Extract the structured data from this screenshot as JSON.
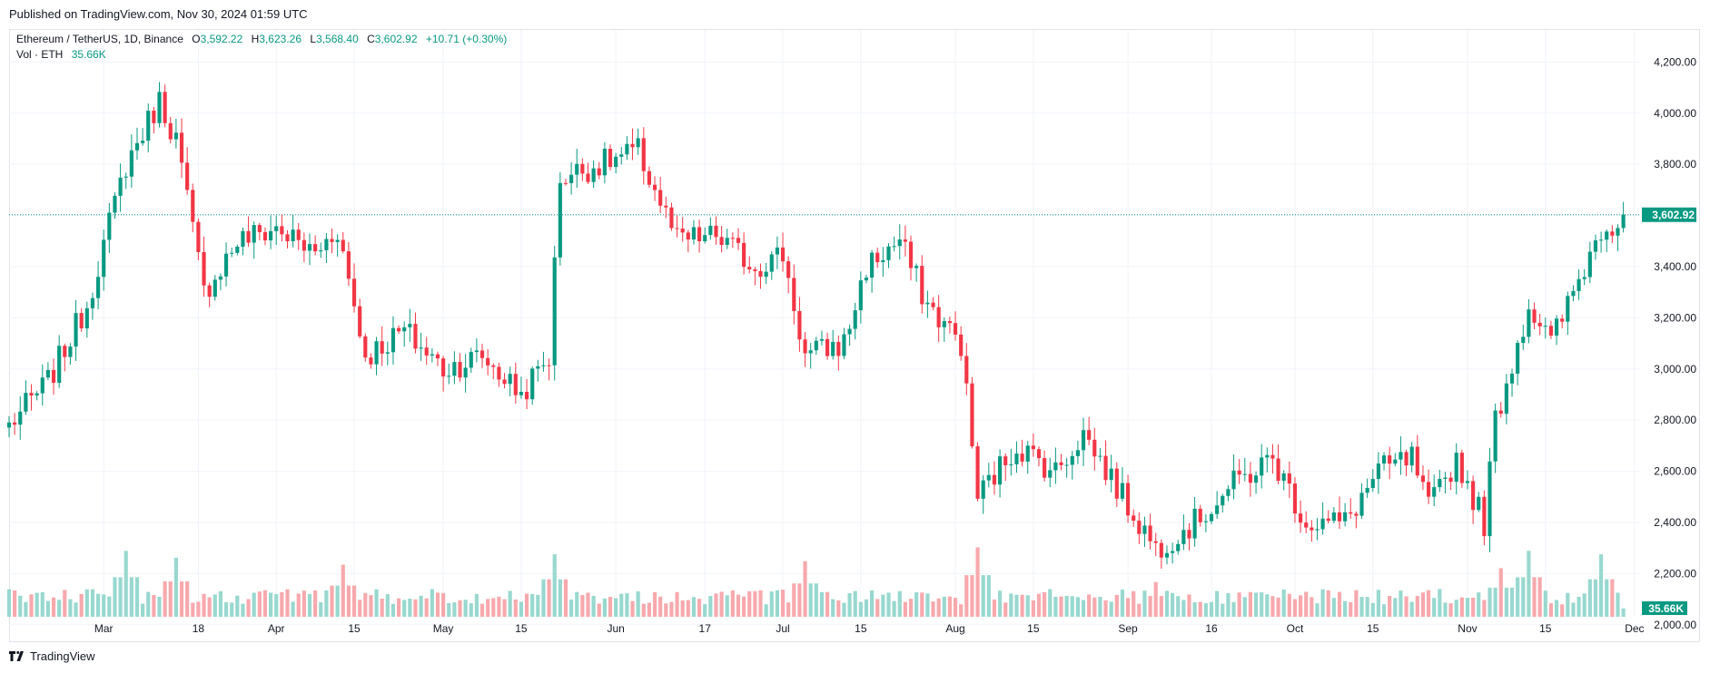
{
  "header": {
    "published": "Published on TradingView.com, Nov 30, 2024 01:59 UTC"
  },
  "legend": {
    "symbol": "Ethereum / TetherUS, 1D, Binance",
    "open_label": "O",
    "open_value": "3,592.22",
    "high_label": "H",
    "high_value": "3,623.26",
    "low_label": "L",
    "low_value": "3,568.40",
    "close_label": "C",
    "close_value": "3,602.92",
    "change": "+10.71 (+0.30%)",
    "vol_label": "Vol · ETH",
    "vol_value": "35.66K"
  },
  "footer": {
    "brand": "TradingView",
    "logo_icon": "tradingview-logo-icon"
  },
  "colors": {
    "up": "#089981",
    "down": "#f23645",
    "up_volume": "#98d8cf",
    "down_volume": "#f7a9ad",
    "grid": "#f0f3fa",
    "price_line": "#089981"
  },
  "chart_data": {
    "type": "candlestick",
    "symbol": "ETHUSDT",
    "timeframe": "1D",
    "y_ticks": [
      "4,200.00",
      "4,000.00",
      "3,800.00",
      "3,600.00",
      "3,400.00",
      "3,200.00",
      "3,000.00",
      "2,800.00",
      "2,600.00",
      "2,400.00",
      "2,200.00",
      "2,000.00"
    ],
    "y_tick_values": [
      4200,
      4000,
      3800,
      3600,
      3400,
      3200,
      3000,
      2800,
      2600,
      2400,
      2200,
      2000
    ],
    "ylim": [
      1985,
      4290
    ],
    "x_ticks": [
      "Mar",
      "18",
      "Apr",
      "15",
      "May",
      "15",
      "Jun",
      "17",
      "Jul",
      "15",
      "Aug",
      "15",
      "Sep",
      "16",
      "Oct",
      "15",
      "Nov",
      "15",
      "Dec"
    ],
    "x_tick_dates": [
      "2024-03-01",
      "2024-03-18",
      "2024-04-01",
      "2024-04-15",
      "2024-05-01",
      "2024-05-15",
      "2024-06-01",
      "2024-06-17",
      "2024-07-01",
      "2024-07-15",
      "2024-08-01",
      "2024-08-15",
      "2024-09-01",
      "2024-09-16",
      "2024-10-01",
      "2024-10-15",
      "2024-11-01",
      "2024-11-15",
      "2024-12-01"
    ],
    "x_range": [
      "2024-02-13",
      "2024-12-02"
    ],
    "current_price": "3,602.92",
    "current_volume": "35.66K",
    "weekly_path": [
      [
        "2024-02-13",
        2780
      ],
      [
        "2024-02-20",
        2950
      ],
      [
        "2024-02-27",
        3250
      ],
      [
        "2024-03-05",
        3800
      ],
      [
        "2024-03-11",
        4050
      ],
      [
        "2024-03-14",
        3900
      ],
      [
        "2024-03-19",
        3300
      ],
      [
        "2024-03-25",
        3500
      ],
      [
        "2024-04-01",
        3550
      ],
      [
        "2024-04-08",
        3450
      ],
      [
        "2024-04-12",
        3550
      ],
      [
        "2024-04-17",
        3050
      ],
      [
        "2024-04-24",
        3150
      ],
      [
        "2024-05-01",
        3000
      ],
      [
        "2024-05-08",
        3050
      ],
      [
        "2024-05-15",
        2900
      ],
      [
        "2024-05-20",
        3050
      ],
      [
        "2024-05-22",
        3750
      ],
      [
        "2024-05-29",
        3800
      ],
      [
        "2024-06-05",
        3850
      ],
      [
        "2024-06-12",
        3500
      ],
      [
        "2024-06-19",
        3520
      ],
      [
        "2024-06-26",
        3400
      ],
      [
        "2024-07-01",
        3450
      ],
      [
        "2024-07-05",
        3050
      ],
      [
        "2024-07-12",
        3100
      ],
      [
        "2024-07-16",
        3400
      ],
      [
        "2024-07-22",
        3500
      ],
      [
        "2024-07-27",
        3250
      ],
      [
        "2024-08-02",
        3100
      ],
      [
        "2024-08-05",
        2500
      ],
      [
        "2024-08-12",
        2700
      ],
      [
        "2024-08-19",
        2600
      ],
      [
        "2024-08-24",
        2750
      ],
      [
        "2024-08-31",
        2500
      ],
      [
        "2024-09-06",
        2300
      ],
      [
        "2024-09-13",
        2400
      ],
      [
        "2024-09-20",
        2550
      ],
      [
        "2024-09-27",
        2650
      ],
      [
        "2024-10-03",
        2400
      ],
      [
        "2024-10-10",
        2400
      ],
      [
        "2024-10-16",
        2600
      ],
      [
        "2024-10-22",
        2650
      ],
      [
        "2024-10-25",
        2450
      ],
      [
        "2024-10-30",
        2650
      ],
      [
        "2024-11-04",
        2400
      ],
      [
        "2024-11-06",
        2800
      ],
      [
        "2024-11-12",
        3250
      ],
      [
        "2024-11-16",
        3100
      ],
      [
        "2024-11-21",
        3350
      ],
      [
        "2024-11-25",
        3550
      ],
      [
        "2024-11-29",
        3600
      ]
    ],
    "volume_peaks": [
      [
        "2024-03-05",
        0.95
      ],
      [
        "2024-03-14",
        0.85
      ],
      [
        "2024-04-13",
        0.75
      ],
      [
        "2024-05-21",
        0.9
      ],
      [
        "2024-07-05",
        0.8
      ],
      [
        "2024-08-05",
        1.0
      ],
      [
        "2024-09-06",
        0.5
      ],
      [
        "2024-11-07",
        0.7
      ],
      [
        "2024-11-12",
        0.95
      ],
      [
        "2024-11-25",
        0.9
      ]
    ],
    "title": "",
    "xlabel": "",
    "ylabel": "",
    "grid": true
  }
}
